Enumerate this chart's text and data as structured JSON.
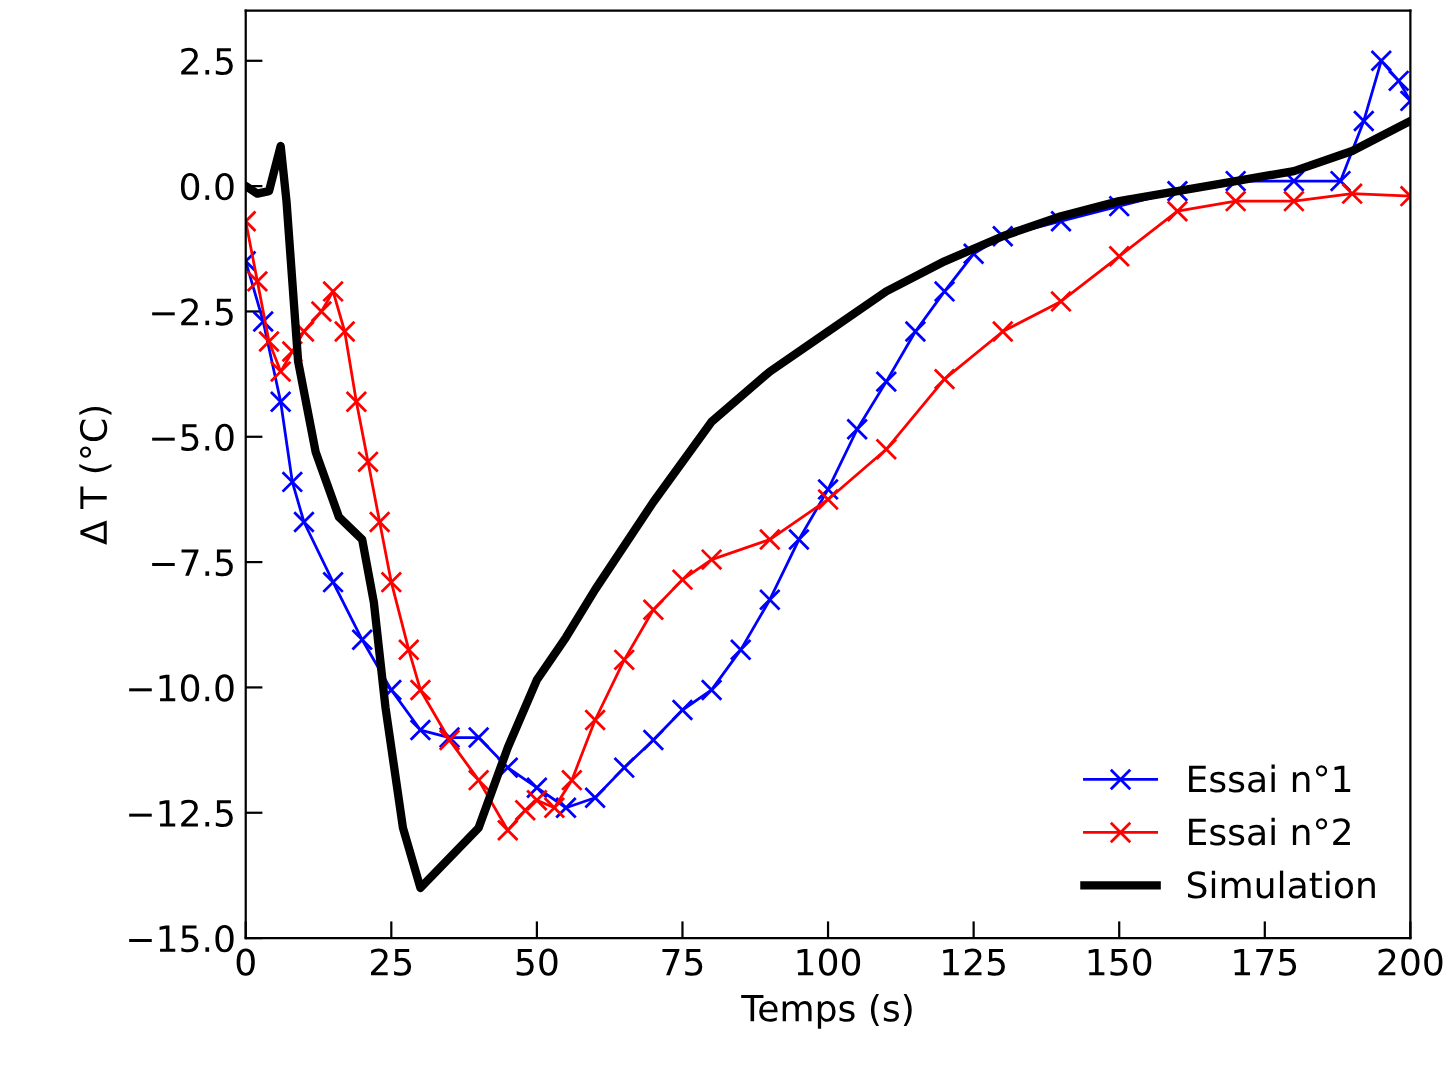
{
  "chart_data": {
    "type": "line",
    "xlabel": "Temps (s)",
    "ylabel": "Δ T (°C)",
    "xlim": [
      0,
      200
    ],
    "ylim": [
      -15,
      3.5
    ],
    "xticks": [
      0,
      25,
      50,
      75,
      100,
      125,
      150,
      175,
      200
    ],
    "yticks": [
      {
        "value": -15,
        "label": "−15.0"
      },
      {
        "value": -12.5,
        "label": "−12.5"
      },
      {
        "value": -10,
        "label": "−10.0"
      },
      {
        "value": -7.5,
        "label": "−7.5"
      },
      {
        "value": -5,
        "label": "−5.0"
      },
      {
        "value": -2.5,
        "label": "−2.5"
      },
      {
        "value": 0,
        "label": "0.0"
      },
      {
        "value": 2.5,
        "label": "2.5"
      }
    ],
    "grid": false,
    "legend": "bottom right",
    "series": [
      {
        "name": "Essai n°1",
        "color": "#0000ff",
        "marker": "cross",
        "x": [
          0,
          3,
          6,
          8,
          10,
          15,
          20,
          25,
          30,
          35,
          40,
          45,
          50,
          55,
          60,
          65,
          70,
          75,
          80,
          85,
          90,
          95,
          100,
          105,
          110,
          115,
          120,
          125,
          130,
          140,
          150,
          160,
          170,
          180,
          188,
          192,
          195,
          198,
          200
        ],
        "values": [
          -1.5,
          -2.7,
          -4.3,
          -5.9,
          -6.7,
          -7.9,
          -9.05,
          -10.05,
          -10.85,
          -11.0,
          -11.0,
          -11.6,
          -12.0,
          -12.4,
          -12.2,
          -11.6,
          -11.05,
          -10.45,
          -10.05,
          -9.25,
          -8.25,
          -7.05,
          -6.05,
          -4.85,
          -3.9,
          -2.9,
          -2.1,
          -1.35,
          -1.0,
          -0.7,
          -0.4,
          -0.1,
          0.1,
          0.1,
          0.1,
          1.3,
          2.5,
          2.1,
          1.7
        ]
      },
      {
        "name": "Essai n°2",
        "color": "#ff0000",
        "marker": "cross",
        "x": [
          0,
          2,
          4,
          6,
          8,
          10,
          13,
          15,
          17,
          19,
          21,
          23,
          25,
          28,
          30,
          35,
          40,
          45,
          48,
          50,
          53,
          56,
          60,
          65,
          70,
          75,
          80,
          90,
          100,
          110,
          120,
          130,
          140,
          150,
          160,
          170,
          180,
          190,
          200
        ],
        "values": [
          -0.7,
          -1.9,
          -3.1,
          -3.7,
          -3.3,
          -2.9,
          -2.5,
          -2.1,
          -2.9,
          -4.3,
          -5.5,
          -6.7,
          -7.9,
          -9.25,
          -10.05,
          -11.05,
          -11.85,
          -12.85,
          -12.45,
          -12.25,
          -12.4,
          -11.85,
          -10.65,
          -9.45,
          -8.45,
          -7.85,
          -7.45,
          -7.05,
          -6.25,
          -5.25,
          -3.85,
          -2.9,
          -2.3,
          -1.4,
          -0.5,
          -0.3,
          -0.3,
          -0.15,
          -0.2
        ]
      },
      {
        "name": "Simulation",
        "color": "#000000",
        "marker": "none",
        "x": [
          0,
          2,
          4,
          6,
          7,
          9,
          12,
          16,
          20,
          22,
          24,
          27,
          30,
          35,
          40,
          45,
          50,
          55,
          60,
          70,
          80,
          90,
          100,
          110,
          120,
          130,
          140,
          150,
          160,
          170,
          180,
          190,
          200
        ],
        "values": [
          0,
          -0.15,
          -0.1,
          0.8,
          -0.3,
          -3.5,
          -5.3,
          -6.6,
          -7.05,
          -8.3,
          -10.4,
          -12.8,
          -14.0,
          -13.4,
          -12.8,
          -11.2,
          -9.85,
          -9.0,
          -8.05,
          -6.3,
          -4.7,
          -3.7,
          -2.9,
          -2.1,
          -1.5,
          -1.0,
          -0.6,
          -0.3,
          -0.1,
          0.1,
          0.3,
          0.7,
          1.3
        ]
      }
    ]
  }
}
